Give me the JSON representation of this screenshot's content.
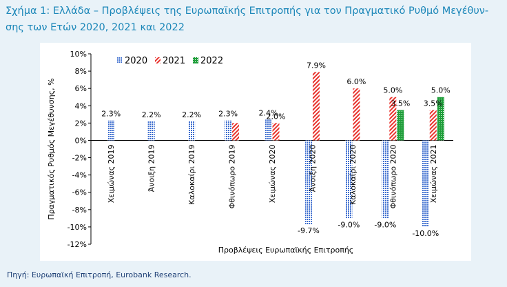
{
  "figure_title": "Σχήμα 1: Ελλάδα – Προβλέψεις της Ευρωπαϊκής Επιτροπής για τον Πραγματικό Ρυθμό Μεγέθυν-σης των Ετών 2020, 2021 και 2022",
  "source": "Πηγή: Ευρωπαϊκή Επιτροπή, Eurobank Research.",
  "colors": {
    "title": "#1a86b8",
    "s2020": "#3f6fcf",
    "s2021": "#e8322c",
    "s2022": "#1f9e3a",
    "text": "#000000",
    "source": "#1d3f75"
  },
  "chart_data": {
    "type": "bar",
    "title": "",
    "xlabel": "Προβλέψεις Ευρωπαϊκής Επιτροπής",
    "ylabel": "Πραγματικός Ρυθμός Μεγέθυνσης, %",
    "ylim": [
      -12,
      10
    ],
    "yticks": [
      -12,
      -10,
      -8,
      -6,
      -4,
      -2,
      0,
      2,
      4,
      6,
      8,
      10
    ],
    "ytick_labels": [
      "-12%",
      "-10%",
      "-8%",
      "-6%",
      "-4%",
      "-2%",
      "0%",
      "2%",
      "4%",
      "6%",
      "8%",
      "10%"
    ],
    "grid": false,
    "legend_position": "top",
    "categories": [
      "Χειμώνας 2019",
      "Άνοιξη 2019",
      "Καλοκαίρι 2019",
      "Φθινόπωρο 2019",
      "Χειμώνας 2020",
      "Άνοιξη 2020",
      "Καλοκαίρι 2020",
      "Φθινόπωρο 2020",
      "Χειμώνας 2021"
    ],
    "series": [
      {
        "name": "2020",
        "pattern": "dots",
        "values": [
          2.3,
          2.2,
          2.2,
          2.3,
          2.4,
          -9.7,
          -9.0,
          -9.0,
          -10.0
        ],
        "labels": [
          "2.3%",
          "2.2%",
          "2.2%",
          "2.3%",
          "2.4%",
          "-9.7%",
          "-9.0%",
          "-9.0%",
          "-10.0%"
        ]
      },
      {
        "name": "2021",
        "pattern": "diagonal",
        "values": [
          null,
          null,
          null,
          2.0,
          2.0,
          7.9,
          6.0,
          5.0,
          3.5
        ],
        "labels": [
          null,
          null,
          null,
          null,
          "2.0%",
          "7.9%",
          "6.0%",
          "5.0%",
          "3.5%"
        ]
      },
      {
        "name": "2022",
        "pattern": "grid",
        "values": [
          null,
          null,
          null,
          null,
          null,
          null,
          null,
          3.5,
          5.0
        ],
        "labels": [
          null,
          null,
          null,
          null,
          null,
          null,
          null,
          "3.5%",
          "5.0%"
        ]
      }
    ]
  }
}
